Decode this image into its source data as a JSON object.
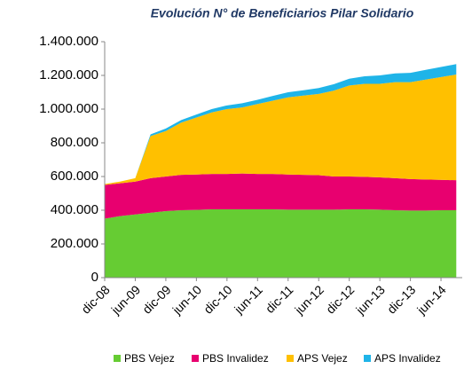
{
  "chart_data": {
    "type": "stacked_area",
    "title": "Evolución N° de Beneficiarios Pilar Solidario",
    "categories": [
      "dic-08",
      null,
      "jun-09",
      null,
      "dic-09",
      null,
      "jun-10",
      null,
      "dic-10",
      null,
      "jun-11",
      null,
      "dic-11",
      null,
      "jun-12",
      null,
      "dic-12",
      null,
      "jun-13",
      null,
      "dic-13",
      null,
      "jun-14",
      null
    ],
    "series": [
      {
        "name": "PBS Vejez",
        "color": "#66cc33",
        "values": [
          350000,
          365000,
          375000,
          385000,
          395000,
          400000,
          402000,
          405000,
          405000,
          405000,
          405000,
          405000,
          403000,
          403000,
          403000,
          403000,
          405000,
          405000,
          403000,
          400000,
          398000,
          398000,
          400000,
          400000
        ]
      },
      {
        "name": "PBS Invalidez",
        "color": "#e8006f",
        "values": [
          200000,
          195000,
          195000,
          205000,
          205000,
          210000,
          210000,
          210000,
          210000,
          213000,
          210000,
          210000,
          209000,
          207000,
          205000,
          197000,
          195000,
          193000,
          192000,
          190000,
          187000,
          184000,
          180000,
          178000
        ]
      },
      {
        "name": "APS Vejez",
        "color": "#ffc000",
        "values": [
          5000,
          10000,
          20000,
          250000,
          270000,
          310000,
          338000,
          365000,
          385000,
          392000,
          415000,
          435000,
          458000,
          470000,
          482000,
          510000,
          540000,
          552000,
          555000,
          570000,
          575000,
          593000,
          610000,
          627000
        ]
      },
      {
        "name": "APS Invalidez",
        "color": "#1fb4e8",
        "values": [
          0,
          0,
          0,
          10000,
          15000,
          15000,
          18000,
          20000,
          22000,
          25000,
          25000,
          28000,
          30000,
          32000,
          35000,
          38000,
          40000,
          45000,
          50000,
          52000,
          55000,
          58000,
          60000,
          62000
        ]
      }
    ],
    "ylim": [
      0,
      1400000
    ],
    "yticks": [
      0,
      {
        "value": 200000,
        "label": "200.000"
      },
      {
        "value": 400000,
        "label": "400.000"
      },
      {
        "value": 600000,
        "label": "600.000"
      },
      {
        "value": 800000,
        "label": "800.000"
      },
      {
        "value": 1000000,
        "label": "1.000.000"
      },
      {
        "value": 1200000,
        "label": "1.200.000"
      },
      {
        "value": 1400000,
        "label": "1.400.000"
      }
    ],
    "grid": false,
    "legend": "bottom"
  }
}
